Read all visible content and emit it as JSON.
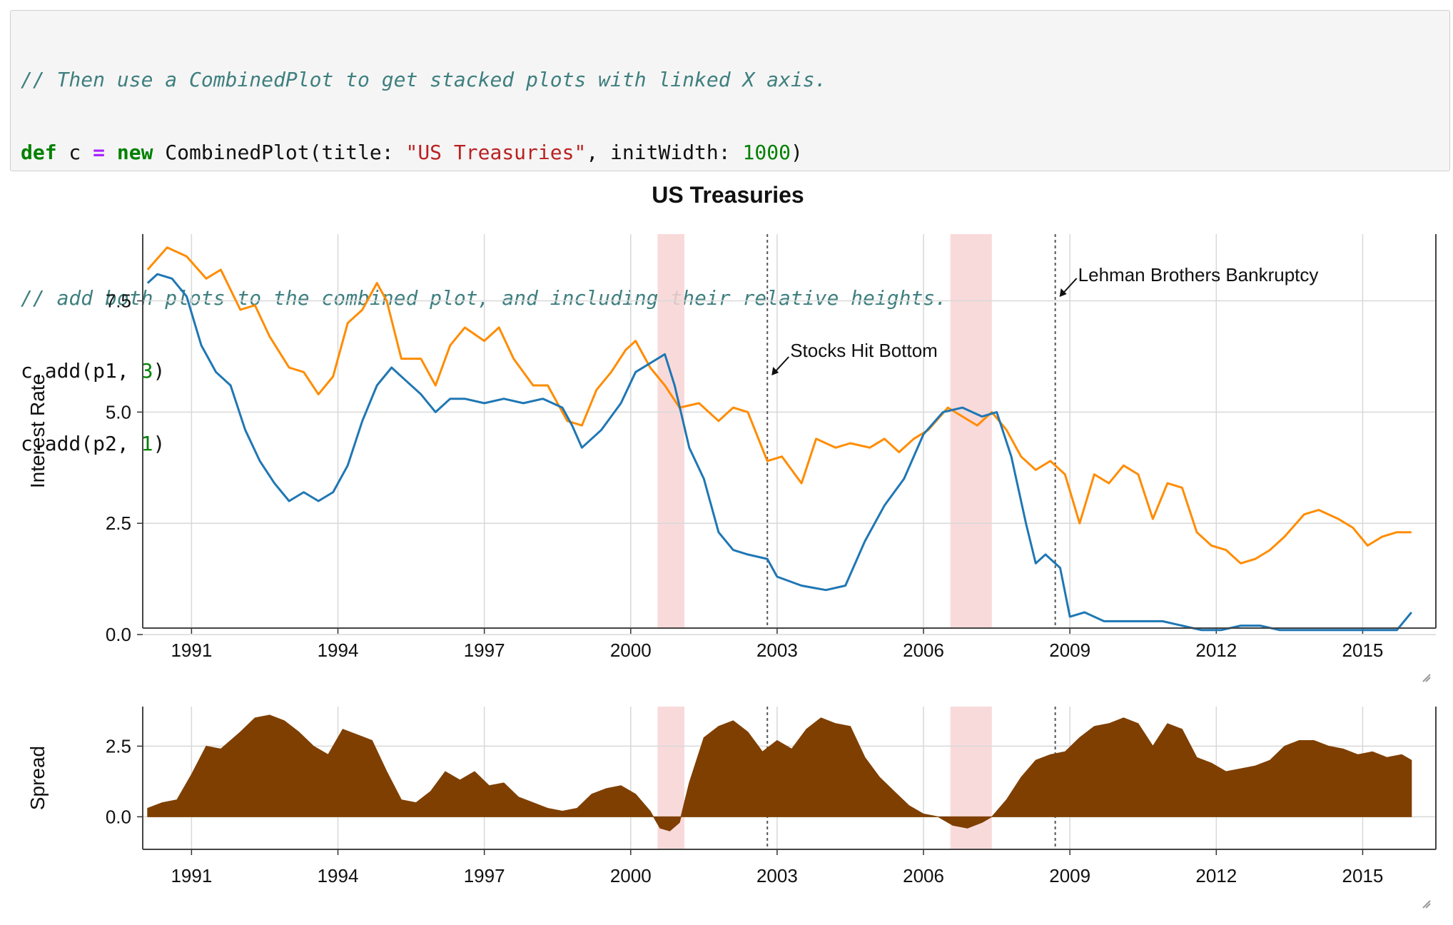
{
  "code": {
    "line1_comment": "// Then use a CombinedPlot to get stacked plots with linked X axis.",
    "line2": {
      "kw_def": "def",
      "var": " c ",
      "op_eq": "=",
      "space": " ",
      "kw_new": "new",
      "call": " CombinedPlot(title: ",
      "str_title": "\"US Treasuries\"",
      "mid": ", initWidth: ",
      "num_width": "1000",
      "close": ")"
    },
    "line4_comment": "// add both plots to the combined plot, and including their relative heights.",
    "line5": {
      "pre": "c.add(p1, ",
      "num": "3",
      "post": ")"
    },
    "line6": {
      "pre": "c.add(p2, ",
      "num": "1",
      "post": ")"
    }
  },
  "colors": {
    "ten_year": "#ff8c00",
    "one_year": "#1f77b4",
    "spread_fill": "#7f3f00",
    "recession": "#f8d4d4",
    "grid": "#d8d8d8"
  },
  "chart_data": {
    "type": "line",
    "title": "US Treasuries",
    "x_ticks": [
      "1991",
      "1994",
      "1997",
      "2000",
      "2003",
      "2006",
      "2009",
      "2012",
      "2015"
    ],
    "xlim": [
      1990,
      2016.5
    ],
    "recessions": [
      [
        2000.55,
        2001.1
      ],
      [
        2006.55,
        2007.4
      ]
    ],
    "events": [
      {
        "label": "Stocks Hit Bottom",
        "x": 2002.8
      },
      {
        "label": "Lehman Brothers Bankruptcy",
        "x": 2008.7
      }
    ],
    "top": {
      "ylabel": "Interest Rate",
      "ylim": [
        -0.4,
        9.0
      ],
      "y_ticks": [
        "0.0",
        "2.5",
        "5.0",
        "7.5"
      ],
      "series": [
        {
          "color_key": "ten_year",
          "x": [
            1990.1,
            1990.5,
            1990.9,
            1991.3,
            1991.6,
            1992.0,
            1992.3,
            1992.6,
            1993.0,
            1993.3,
            1993.6,
            1993.9,
            1994.2,
            1994.5,
            1994.8,
            1995.0,
            1995.3,
            1995.7,
            1996.0,
            1996.3,
            1996.6,
            1997.0,
            1997.3,
            1997.6,
            1998.0,
            1998.3,
            1998.7,
            1999.0,
            1999.3,
            1999.6,
            1999.9,
            2000.1,
            2000.4,
            2000.7,
            2001.0,
            2001.4,
            2001.8,
            2002.1,
            2002.4,
            2002.8,
            2003.1,
            2003.5,
            2003.8,
            2004.2,
            2004.5,
            2004.9,
            2005.2,
            2005.5,
            2005.8,
            2006.1,
            2006.5,
            2006.8,
            2007.1,
            2007.4,
            2007.7,
            2008.0,
            2008.3,
            2008.6,
            2008.9,
            2009.2,
            2009.5,
            2009.8,
            2010.1,
            2010.4,
            2010.7,
            2011.0,
            2011.3,
            2011.6,
            2011.9,
            2012.2,
            2012.5,
            2012.8,
            2013.1,
            2013.4,
            2013.8,
            2014.1,
            2014.5,
            2014.8,
            2015.1,
            2015.4,
            2015.7,
            2016.0
          ],
          "y": [
            8.2,
            8.7,
            8.5,
            8.0,
            8.2,
            7.3,
            7.4,
            6.7,
            6.0,
            5.9,
            5.4,
            5.8,
            7.0,
            7.3,
            7.9,
            7.5,
            6.2,
            6.2,
            5.6,
            6.5,
            6.9,
            6.6,
            6.9,
            6.2,
            5.6,
            5.6,
            4.8,
            4.7,
            5.5,
            5.9,
            6.4,
            6.6,
            6.0,
            5.6,
            5.1,
            5.2,
            4.8,
            5.1,
            5.0,
            3.9,
            4.0,
            3.4,
            4.4,
            4.2,
            4.3,
            4.2,
            4.4,
            4.1,
            4.4,
            4.6,
            5.1,
            4.9,
            4.7,
            5.0,
            4.6,
            4.0,
            3.7,
            3.9,
            3.6,
            2.5,
            3.6,
            3.4,
            3.8,
            3.6,
            2.6,
            3.4,
            3.3,
            2.3,
            2.0,
            1.9,
            1.6,
            1.7,
            1.9,
            2.2,
            2.7,
            2.8,
            2.6,
            2.4,
            2.0,
            2.2,
            2.3,
            2.3
          ]
        },
        {
          "color_key": "one_year",
          "x": [
            1990.1,
            1990.3,
            1990.6,
            1990.9,
            1991.2,
            1991.5,
            1991.8,
            1992.1,
            1992.4,
            1992.7,
            1993.0,
            1993.3,
            1993.6,
            1993.9,
            1994.2,
            1994.5,
            1994.8,
            1995.1,
            1995.4,
            1995.7,
            1996.0,
            1996.3,
            1996.6,
            1997.0,
            1997.4,
            1997.8,
            1998.2,
            1998.6,
            1998.8,
            1999.0,
            1999.4,
            1999.8,
            2000.1,
            2000.4,
            2000.7,
            2000.9,
            2001.2,
            2001.5,
            2001.8,
            2002.1,
            2002.4,
            2002.8,
            2003.0,
            2003.5,
            2004.0,
            2004.4,
            2004.8,
            2005.2,
            2005.6,
            2006.0,
            2006.4,
            2006.8,
            2007.2,
            2007.5,
            2007.8,
            2008.1,
            2008.3,
            2008.5,
            2008.8,
            2009.0,
            2009.3,
            2009.7,
            2010.1,
            2010.5,
            2010.9,
            2011.3,
            2011.7,
            2012.1,
            2012.5,
            2012.9,
            2013.3,
            2013.7,
            2014.1,
            2014.5,
            2014.9,
            2015.3,
            2015.7,
            2016.0
          ],
          "y": [
            7.9,
            8.1,
            8.0,
            7.6,
            6.5,
            5.9,
            5.6,
            4.6,
            3.9,
            3.4,
            3.0,
            3.2,
            3.0,
            3.2,
            3.8,
            4.8,
            5.6,
            6.0,
            5.7,
            5.4,
            5.0,
            5.3,
            5.3,
            5.2,
            5.3,
            5.2,
            5.3,
            5.1,
            4.7,
            4.2,
            4.6,
            5.2,
            5.9,
            6.1,
            6.3,
            5.6,
            4.2,
            3.5,
            2.3,
            1.9,
            1.8,
            1.7,
            1.3,
            1.1,
            1.0,
            1.1,
            2.1,
            2.9,
            3.5,
            4.5,
            5.0,
            5.1,
            4.9,
            5.0,
            4.0,
            2.5,
            1.6,
            1.8,
            1.5,
            0.4,
            0.5,
            0.3,
            0.3,
            0.3,
            0.3,
            0.2,
            0.1,
            0.1,
            0.2,
            0.2,
            0.1,
            0.1,
            0.1,
            0.1,
            0.1,
            0.1,
            0.1,
            0.5
          ]
        }
      ]
    },
    "bottom": {
      "ylabel": "Spread",
      "ylim": [
        -0.9,
        3.9
      ],
      "y_ticks": [
        "0.0",
        "2.5"
      ],
      "series": {
        "color_key": "spread_fill",
        "x": [
          1990.1,
          1990.4,
          1990.7,
          1991.0,
          1991.3,
          1991.6,
          1992.0,
          1992.3,
          1992.6,
          1992.9,
          1993.2,
          1993.5,
          1993.8,
          1994.1,
          1994.4,
          1994.7,
          1995.0,
          1995.3,
          1995.6,
          1995.9,
          1996.2,
          1996.5,
          1996.8,
          1997.1,
          1997.4,
          1997.7,
          1998.0,
          1998.3,
          1998.6,
          1998.9,
          1999.2,
          1999.5,
          1999.8,
          2000.1,
          2000.4,
          2000.6,
          2000.8,
          2001.0,
          2001.2,
          2001.5,
          2001.8,
          2002.1,
          2002.4,
          2002.7,
          2003.0,
          2003.3,
          2003.6,
          2003.9,
          2004.2,
          2004.5,
          2004.8,
          2005.1,
          2005.4,
          2005.7,
          2006.0,
          2006.3,
          2006.6,
          2006.9,
          2007.2,
          2007.4,
          2007.7,
          2008.0,
          2008.3,
          2008.6,
          2008.9,
          2009.2,
          2009.5,
          2009.8,
          2010.1,
          2010.4,
          2010.7,
          2011.0,
          2011.3,
          2011.6,
          2011.9,
          2012.2,
          2012.5,
          2012.8,
          2013.1,
          2013.4,
          2013.7,
          2014.0,
          2014.3,
          2014.6,
          2014.9,
          2015.2,
          2015.5,
          2015.8,
          2016.0
        ],
        "y": [
          0.3,
          0.5,
          0.6,
          1.5,
          2.5,
          2.4,
          3.0,
          3.5,
          3.6,
          3.4,
          3.0,
          2.5,
          2.2,
          3.1,
          2.9,
          2.7,
          1.6,
          0.6,
          0.5,
          0.9,
          1.6,
          1.3,
          1.6,
          1.1,
          1.2,
          0.7,
          0.5,
          0.3,
          0.2,
          0.3,
          0.8,
          1.0,
          1.1,
          0.8,
          0.2,
          -0.4,
          -0.5,
          -0.2,
          1.2,
          2.8,
          3.2,
          3.4,
          3.0,
          2.3,
          2.7,
          2.4,
          3.1,
          3.5,
          3.3,
          3.2,
          2.1,
          1.4,
          0.9,
          0.4,
          0.1,
          0.0,
          -0.3,
          -0.4,
          -0.2,
          0.0,
          0.6,
          1.4,
          2.0,
          2.2,
          2.3,
          2.8,
          3.2,
          3.3,
          3.5,
          3.3,
          2.5,
          3.3,
          3.1,
          2.1,
          1.9,
          1.6,
          1.7,
          1.8,
          2.0,
          2.5,
          2.7,
          2.7,
          2.5,
          2.4,
          2.2,
          2.3,
          2.1,
          2.2,
          2.0
        ]
      }
    }
  }
}
